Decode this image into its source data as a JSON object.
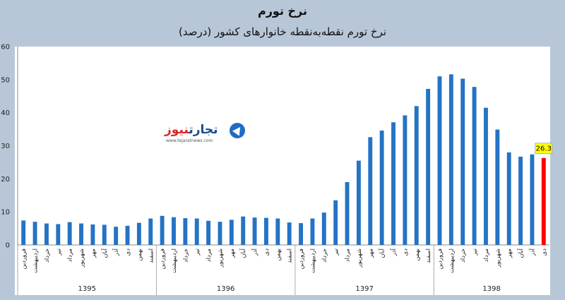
{
  "title": "نرخ تورم",
  "subtitle": "نرخ تورم نقطه‌به‌نقطه خانوارهای کشور (درصد)",
  "watermark": {
    "name_part1": "تجارت",
    "name_part2": "نیوز",
    "url": "www.tejaratnews.com"
  },
  "colors": {
    "bar": "#2473c5",
    "highlight": "#ff0000",
    "label_bg": "#ffff00",
    "axis": "#888888"
  },
  "chart_data": {
    "type": "bar",
    "title": "نرخ تورم",
    "subtitle": "نرخ تورم نقطه‌به‌نقطه خانوارهای کشور (درصد)",
    "ylim": [
      0,
      60
    ],
    "yticks": [
      0,
      10,
      20,
      30,
      40,
      50,
      60
    ],
    "grid": false,
    "categories": [
      "فروردین",
      "اردیبهشت",
      "خرداد",
      "تیر",
      "مرداد",
      "شهریور",
      "مهر",
      "آبان",
      "آذر",
      "دی",
      "بهمن",
      "اسفند",
      "فروردین",
      "اردیبهشت",
      "خرداد",
      "تیر",
      "مرداد",
      "شهریور",
      "مهر",
      "آبان",
      "آذر",
      "دی",
      "بهمن",
      "اسفند",
      "فروردین",
      "اردیبهشت",
      "خرداد",
      "تیر",
      "مرداد",
      "شهریور",
      "مهر",
      "آبان",
      "آذر",
      "دی",
      "بهمن",
      "اسفند",
      "فروردین",
      "اردیبهشت",
      "خرداد",
      "تیر",
      "مرداد",
      "شهریور",
      "مهر",
      "آبان",
      "آذر",
      "دی"
    ],
    "values": [
      7.4,
      7.0,
      6.5,
      6.3,
      6.9,
      6.5,
      6.2,
      6.1,
      5.5,
      5.8,
      6.7,
      8.0,
      8.8,
      8.4,
      8.1,
      8.0,
      7.3,
      7.0,
      7.6,
      8.6,
      8.3,
      8.2,
      8.0,
      6.8,
      6.6,
      8.0,
      9.8,
      13.5,
      19.0,
      25.5,
      32.6,
      34.6,
      37.1,
      39.2,
      42.0,
      47.2,
      51.0,
      51.6,
      50.3,
      47.8,
      41.5,
      34.9,
      28.0,
      26.7,
      27.4,
      26.3
    ],
    "highlight_index": 45,
    "highlight_label": "26.3",
    "year_groups": [
      {
        "label": "1395",
        "count": 12
      },
      {
        "label": "1396",
        "count": 12
      },
      {
        "label": "1397",
        "count": 12
      },
      {
        "label": "1398",
        "count": 10
      }
    ]
  }
}
